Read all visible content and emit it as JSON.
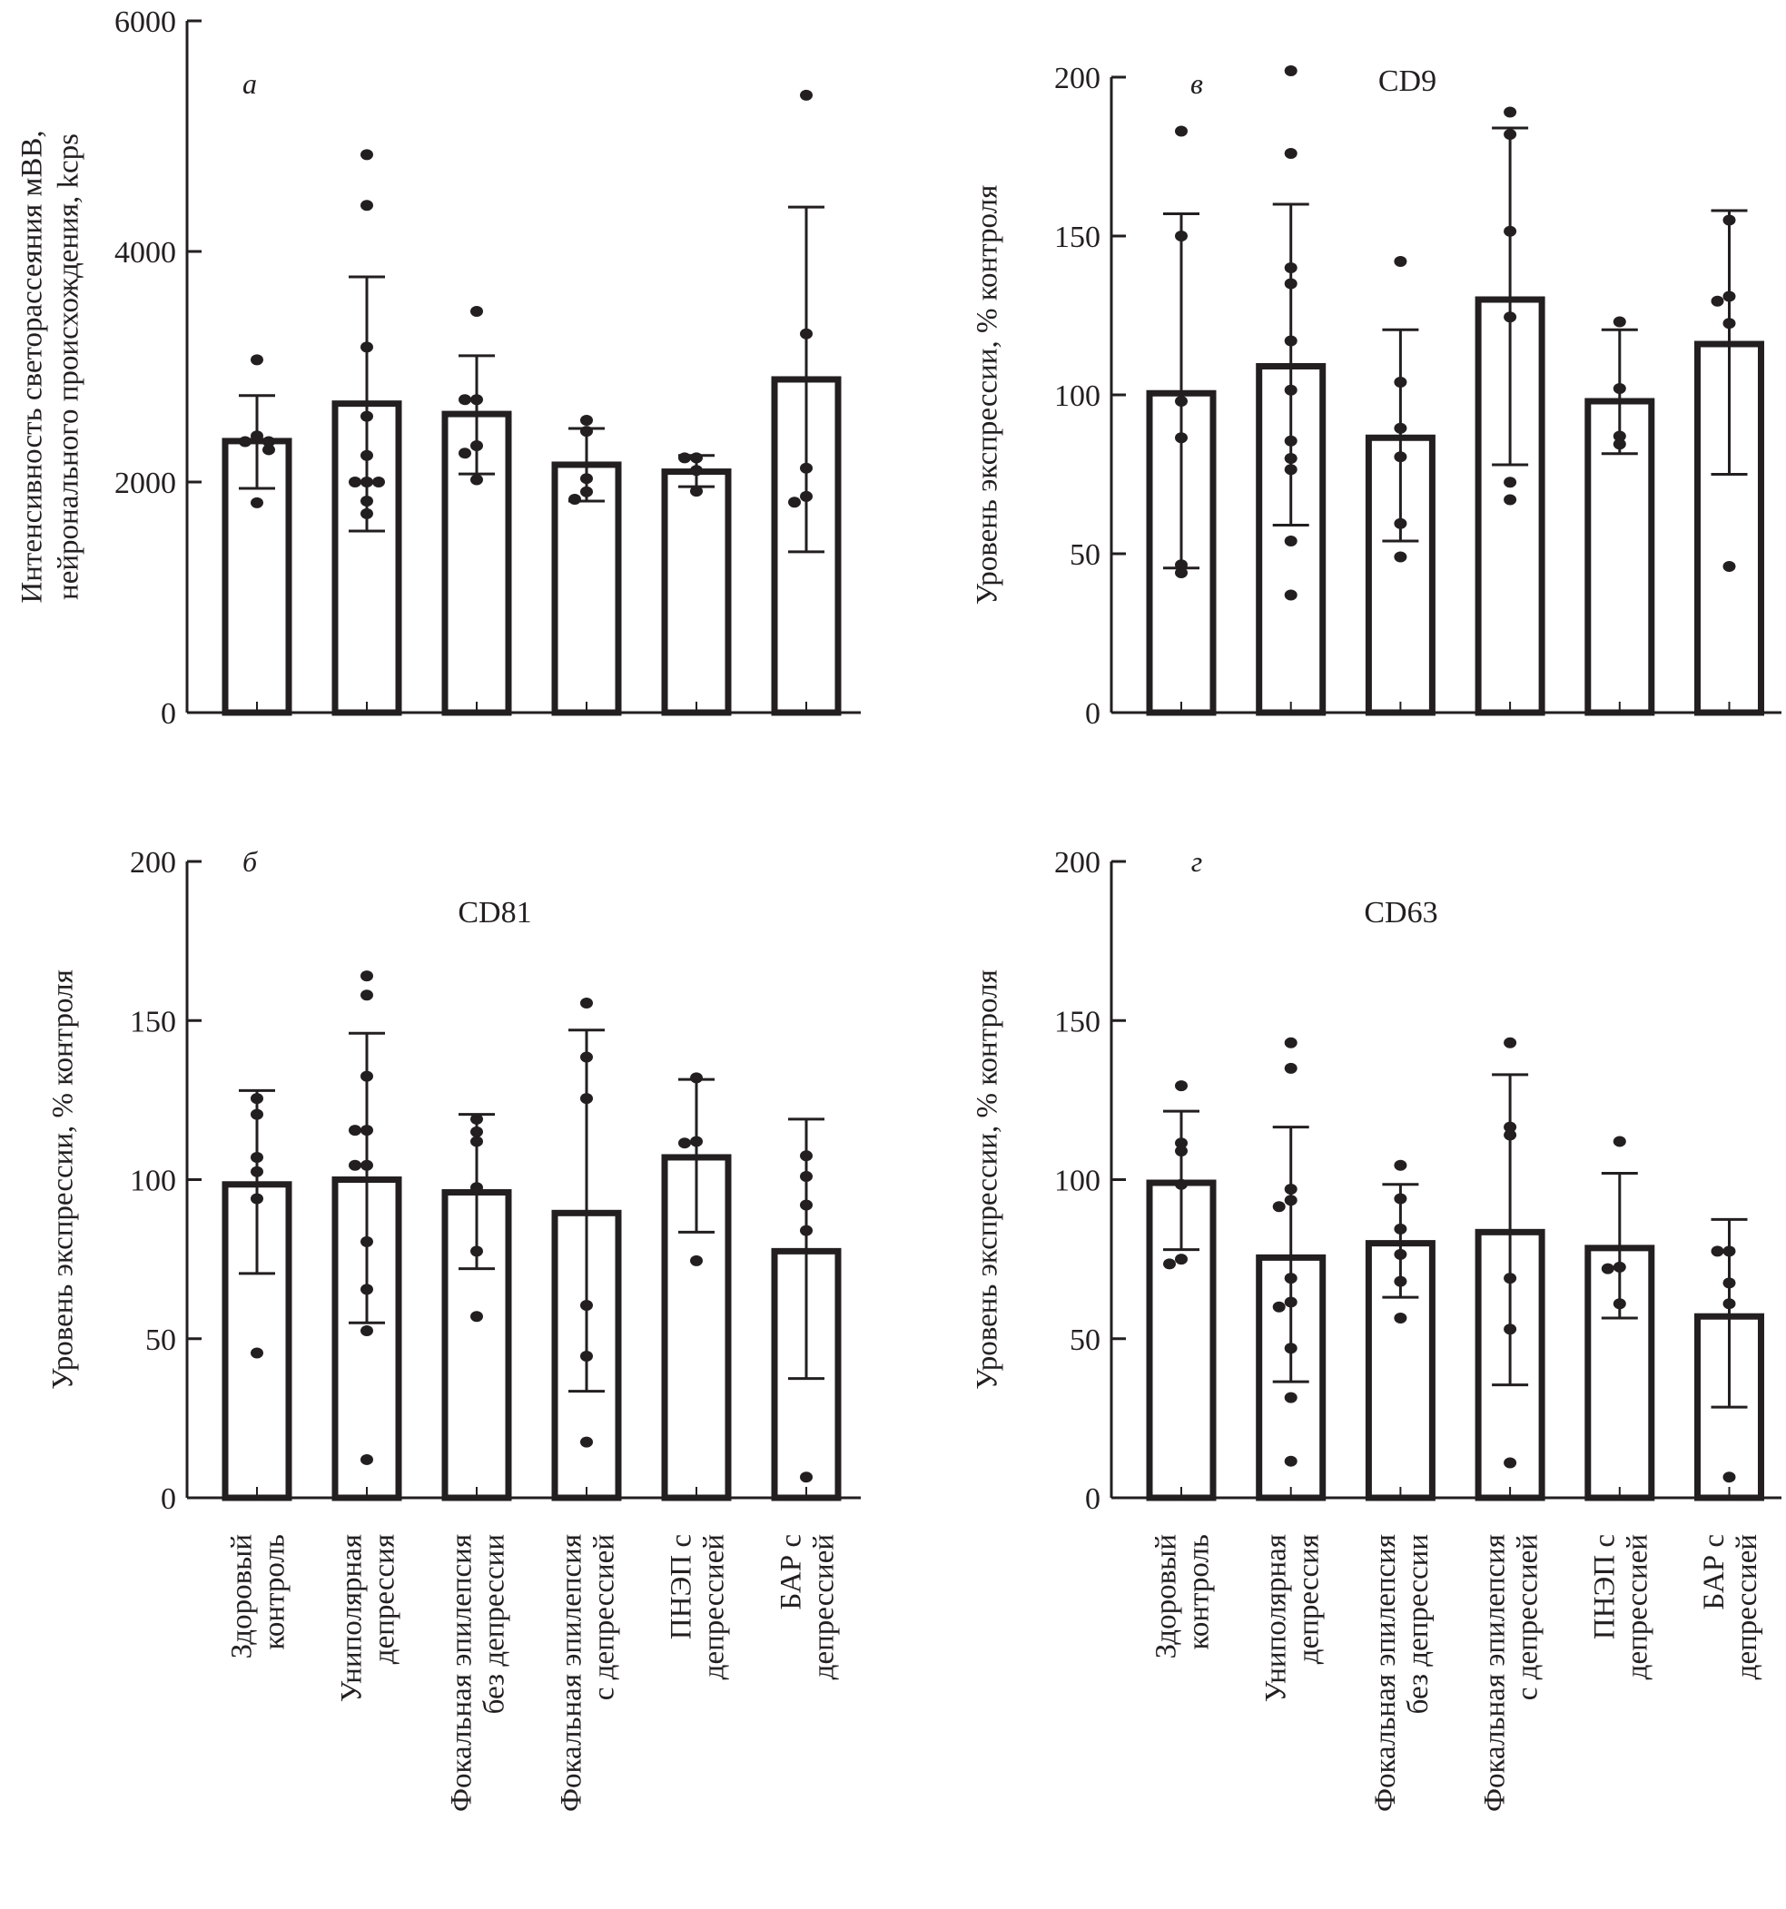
{
  "chart_data": [
    {
      "id": "a",
      "type": "bar",
      "panel_letter": "а",
      "title": "",
      "ylabel_lines": [
        "Интенсивность светорассеяния мВВ,",
        "нейронального происхождения, kcps"
      ],
      "xlabel": "",
      "ylim": [
        0,
        6000
      ],
      "yticks": [
        0,
        2000,
        4000,
        6000
      ],
      "grid": false,
      "categories": [
        "Здоровый контроль",
        "Униполярная депрессия",
        "Фокальная эпилепсия без депрессии",
        "Фокальная эпилепсия с депрессией",
        "ПНЭП с депрессией",
        "БАР с депрессией"
      ],
      "values": [
        2355,
        2680,
        2590,
        2150,
        2090,
        2890
      ],
      "error_low": [
        1945,
        1575,
        2070,
        1835,
        1960,
        1395
      ],
      "error_high": [
        2750,
        3780,
        3095,
        2465,
        2230,
        4385
      ],
      "points": [
        [
          3060,
          2400,
          2350,
          2350,
          2280,
          1820
        ],
        [
          4840,
          4400,
          3170,
          2570,
          2230,
          2000,
          2000,
          2000,
          1835,
          1725
        ],
        [
          3480,
          2715,
          2715,
          2315,
          2250,
          2020
        ],
        [
          2535,
          2440,
          2030,
          1915,
          1850
        ],
        [
          2210,
          2210,
          2100,
          1920
        ],
        [
          5355,
          3285,
          2120,
          1875,
          1825
        ]
      ]
    },
    {
      "id": "v",
      "type": "bar",
      "panel_letter": "в",
      "title": "CD9",
      "ylabel_lines": [
        "Уровень экспрессии, % контроля"
      ],
      "xlabel": "",
      "ylim": [
        0,
        200
      ],
      "yticks": [
        0,
        50,
        100,
        150,
        200
      ],
      "grid": false,
      "categories": [
        "Здоровый контроль",
        "Униполярная депрессия",
        "Фокальная эпилепсия без депрессии",
        "Фокальная эпилепсия с депрессией",
        "ПНЭП с депрессией",
        "БАР с депрессией"
      ],
      "values": [
        100.5,
        109,
        86.5,
        130,
        98,
        116
      ],
      "error_low": [
        45.5,
        59,
        54,
        78,
        81.5,
        75
      ],
      "error_high": [
        157,
        160,
        120.5,
        184,
        120.5,
        158
      ],
      "points": [
        [
          183,
          150,
          98,
          86.5,
          46.5,
          44
        ],
        [
          202,
          176,
          140,
          135,
          117,
          101.5,
          85.5,
          80,
          76.5,
          54,
          37
        ],
        [
          142,
          104,
          89.5,
          80.5,
          59.5,
          49
        ],
        [
          189,
          182,
          151.5,
          124.5,
          72.5,
          67
        ],
        [
          123,
          102,
          87,
          84.5
        ],
        [
          155,
          131,
          129.5,
          122.5,
          46
        ]
      ]
    },
    {
      "id": "b",
      "type": "bar",
      "panel_letter": "б",
      "title": "CD81",
      "ylabel_lines": [
        "Уровень экспрессии, % контроля"
      ],
      "xlabel": "",
      "ylim": [
        0,
        200
      ],
      "yticks": [
        0,
        50,
        100,
        150,
        200
      ],
      "grid": false,
      "categories": [
        "Здоровый контроль",
        "Униполярная депрессия",
        "Фокальная эпилепсия без депрессии",
        "Фокальная эпилепсия с депрессией",
        "ПНЭП с депрессией",
        "БАР с депрессией"
      ],
      "values": [
        98.5,
        100,
        96,
        89.5,
        107,
        77.5
      ],
      "error_low": [
        70.5,
        55,
        72,
        33.5,
        83.5,
        37.5
      ],
      "error_high": [
        128,
        146,
        120.5,
        147,
        131.5,
        119
      ],
      "points": [
        [
          125.5,
          120.5,
          107,
          102.5,
          94,
          45.5
        ],
        [
          164,
          158,
          132.5,
          115.5,
          115.5,
          104.5,
          104.5,
          80.5,
          65.5,
          52.5,
          12
        ],
        [
          119,
          115,
          112,
          97.5,
          77.5,
          57
        ],
        [
          155.5,
          138.5,
          125.5,
          60.5,
          44.5,
          17.5
        ],
        [
          132,
          112,
          111.5,
          74.5
        ],
        [
          107.5,
          101,
          92,
          84,
          6.5
        ]
      ]
    },
    {
      "id": "g",
      "type": "bar",
      "panel_letter": "г",
      "title": "CD63",
      "ylabel_lines": [
        "Уровень экспрессии, % контроля"
      ],
      "xlabel": "",
      "ylim": [
        0,
        200
      ],
      "yticks": [
        0,
        50,
        100,
        150,
        200
      ],
      "grid": false,
      "categories": [
        "Здоровый контроль",
        "Униполярная депрессия",
        "Фокальная эпилепсия без депрессии",
        "Фокальная эпилепсия с депрессией",
        "ПНЭП с депрессией",
        "БАР с депрессией"
      ],
      "values": [
        99,
        75.5,
        80,
        83.5,
        78.5,
        57
      ],
      "error_low": [
        78,
        36.5,
        63,
        35.5,
        56.5,
        28.5
      ],
      "error_high": [
        121.5,
        116.5,
        98.5,
        133,
        102,
        87.5
      ],
      "points": [
        [
          129.5,
          111.5,
          109,
          98.5,
          75,
          73.5
        ],
        [
          143,
          135,
          97,
          93.5,
          91.5,
          69,
          61.5,
          60,
          47,
          31.5,
          11.5
        ],
        [
          104.5,
          94,
          84.5,
          76.5,
          68,
          56.5
        ],
        [
          143,
          116.5,
          114,
          69,
          53,
          11
        ],
        [
          112,
          72.5,
          72,
          61
        ],
        [
          77.5,
          77.5,
          67.5,
          61,
          6.5
        ]
      ]
    }
  ],
  "category_label_lines": [
    [
      "Здоровый",
      "контроль"
    ],
    [
      "Униполярная",
      "депрессия"
    ],
    [
      "Фокальная эпилепсия",
      "без депрессии"
    ],
    [
      "Фокальная эпилепсия",
      "с депрессией"
    ],
    [
      "ПНЭП с",
      "депрессией"
    ],
    [
      "БАР с",
      "депрессией"
    ]
  ],
  "colors": {
    "ink": "#231f20",
    "bar_fill": "#ffffff"
  }
}
